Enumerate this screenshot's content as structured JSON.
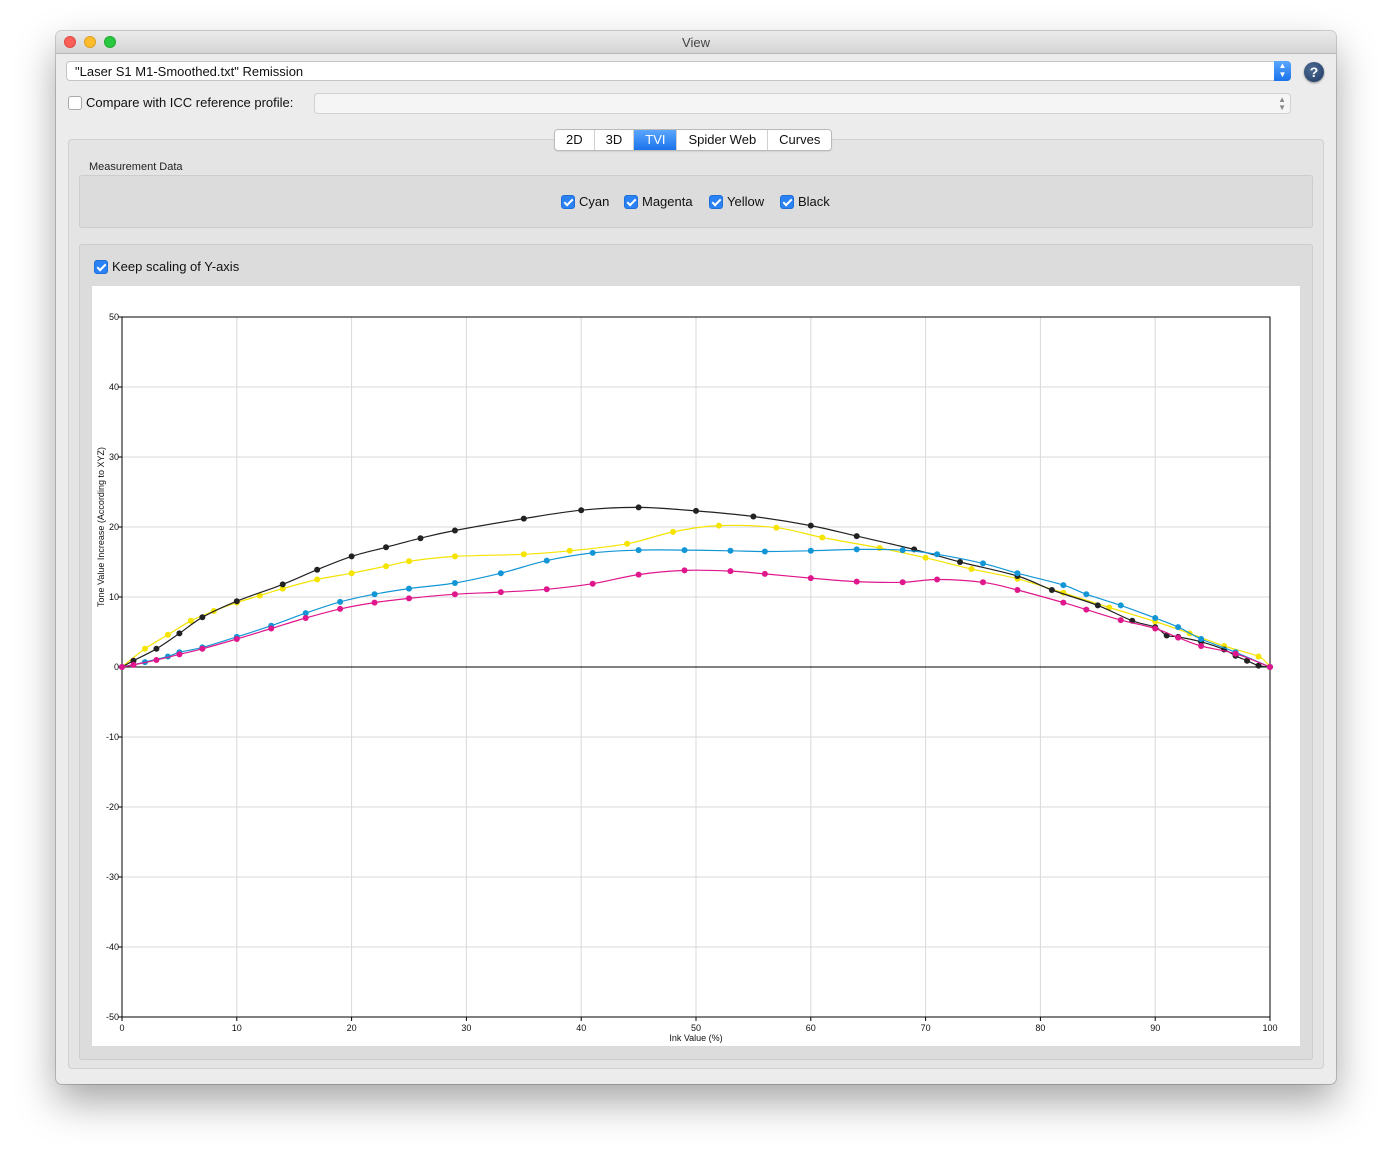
{
  "window": {
    "title": "View"
  },
  "header": {
    "file_select_value": "\"Laser S1 M1-Smoothed.txt\" Remission",
    "help_label": "?",
    "compare_label": "Compare with ICC reference profile:",
    "compare_checked": false,
    "icc_value": ""
  },
  "tabs": [
    {
      "label": "2D",
      "active": false
    },
    {
      "label": "3D",
      "active": false
    },
    {
      "label": "TVI",
      "active": true
    },
    {
      "label": "Spider Web",
      "active": false
    },
    {
      "label": "Curves",
      "active": false
    }
  ],
  "measurement": {
    "group_title": "Measurement Data",
    "channels": [
      {
        "label": "Cyan",
        "checked": true
      },
      {
        "label": "Magenta",
        "checked": true
      },
      {
        "label": "Yellow",
        "checked": true
      },
      {
        "label": "Black",
        "checked": true
      }
    ]
  },
  "keep_scaling_label": "Keep scaling of Y-axis",
  "keep_scaling_checked": true,
  "chart_data": {
    "type": "line",
    "title": "",
    "xlabel": "Ink Value (%)",
    "ylabel": "Tone Value Increase (According to XYZ)",
    "xlim": [
      0,
      100
    ],
    "ylim": [
      -50,
      50
    ],
    "xticks": [
      "0",
      "10",
      "20",
      "30",
      "40",
      "50",
      "60",
      "70",
      "80",
      "90",
      "100"
    ],
    "yticks": [
      "-50",
      "-40",
      "-30",
      "-20",
      "-10",
      "0",
      "10",
      "20",
      "30",
      "40",
      "50"
    ],
    "grid": true,
    "series": [
      {
        "name": "Yellow",
        "color": "#f5e300",
        "x": [
          0,
          2,
          4,
          6,
          8,
          10,
          12,
          14,
          17,
          20,
          23,
          25,
          29,
          35,
          39,
          44,
          48,
          52,
          57,
          61,
          66,
          70,
          74,
          78,
          82,
          86,
          90,
          93,
          96,
          99,
          100
        ],
        "y": [
          0,
          2.6,
          4.6,
          6.6,
          8.0,
          9.2,
          10.2,
          11.2,
          12.5,
          13.4,
          14.4,
          15.1,
          15.8,
          16.1,
          16.6,
          17.6,
          19.3,
          20.2,
          19.9,
          18.5,
          17.0,
          15.6,
          14.0,
          12.6,
          10.6,
          8.5,
          6.5,
          4.8,
          3.0,
          1.5,
          0
        ]
      },
      {
        "name": "Black",
        "color": "#222222",
        "x": [
          0,
          1,
          3,
          5,
          7,
          10,
          14,
          17,
          20,
          23,
          26,
          29,
          35,
          40,
          45,
          50,
          55,
          60,
          64,
          69,
          73,
          78,
          81,
          85,
          88,
          90,
          91,
          92,
          94,
          96,
          97,
          98,
          99,
          100
        ],
        "y": [
          0,
          0.9,
          2.6,
          4.8,
          7.1,
          9.4,
          11.8,
          13.9,
          15.8,
          17.1,
          18.4,
          19.5,
          21.2,
          22.4,
          22.8,
          22.3,
          21.5,
          20.2,
          18.7,
          16.8,
          15.0,
          13.0,
          11.0,
          8.8,
          6.6,
          5.7,
          4.5,
          4.3,
          3.6,
          2.5,
          1.6,
          0.9,
          0.2,
          0
        ]
      },
      {
        "name": "Cyan",
        "color": "#1296d6",
        "x": [
          0,
          2,
          4,
          5,
          7,
          10,
          13,
          16,
          19,
          22,
          25,
          29,
          33,
          37,
          41,
          45,
          49,
          53,
          56,
          60,
          64,
          68,
          71,
          75,
          78,
          82,
          84,
          87,
          90,
          92,
          94,
          97,
          100
        ],
        "y": [
          0,
          0.7,
          1.5,
          2.1,
          2.8,
          4.3,
          5.9,
          7.7,
          9.3,
          10.4,
          11.2,
          12.0,
          13.4,
          15.2,
          16.3,
          16.7,
          16.7,
          16.6,
          16.5,
          16.6,
          16.8,
          16.7,
          16.1,
          14.8,
          13.4,
          11.7,
          10.4,
          8.8,
          7.0,
          5.7,
          4.0,
          2.1,
          0
        ]
      },
      {
        "name": "Magenta",
        "color": "#e0168c",
        "x": [
          0,
          1,
          3,
          5,
          7,
          10,
          13,
          16,
          19,
          22,
          25,
          29,
          33,
          37,
          41,
          45,
          49,
          53,
          56,
          60,
          64,
          68,
          71,
          75,
          78,
          82,
          84,
          87,
          90,
          92,
          94,
          97,
          100
        ],
        "y": [
          0,
          0.3,
          1.0,
          1.8,
          2.6,
          4.0,
          5.5,
          7.0,
          8.3,
          9.2,
          9.8,
          10.4,
          10.7,
          11.1,
          11.9,
          13.2,
          13.8,
          13.7,
          13.3,
          12.7,
          12.2,
          12.1,
          12.5,
          12.1,
          11.0,
          9.2,
          8.2,
          6.7,
          5.5,
          4.2,
          3.0,
          1.9,
          0
        ]
      }
    ]
  }
}
